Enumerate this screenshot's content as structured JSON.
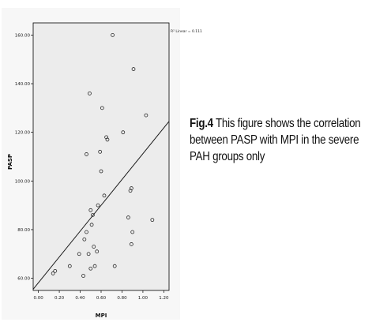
{
  "chart_data": {
    "type": "scatter",
    "xlabel": "MPI",
    "ylabel": "PASP",
    "xlim": [
      -0.05,
      1.25
    ],
    "ylim": [
      55,
      165
    ],
    "x_ticks": [
      "0.00",
      "0.20",
      "0.40",
      "0.60",
      "0.80",
      "1.00",
      "1.20"
    ],
    "y_ticks": [
      "60.00",
      "80.00",
      "100.00",
      "120.00",
      "140.00",
      "160.00"
    ],
    "x_tick_values": [
      0,
      0.2,
      0.4,
      0.6,
      0.8,
      1.0,
      1.2
    ],
    "y_tick_values": [
      60,
      80,
      100,
      120,
      140,
      160
    ],
    "r2_label": "R² Linear = 0.111",
    "grid": false,
    "point_color": "#2b2b2b",
    "line_color": "#1a1a1a",
    "plot_bg": "#ececec",
    "points": [
      {
        "x": 0.14,
        "y": 62
      },
      {
        "x": 0.16,
        "y": 63
      },
      {
        "x": 0.3,
        "y": 65
      },
      {
        "x": 0.39,
        "y": 70
      },
      {
        "x": 0.43,
        "y": 61
      },
      {
        "x": 0.44,
        "y": 76
      },
      {
        "x": 0.46,
        "y": 79
      },
      {
        "x": 0.48,
        "y": 70
      },
      {
        "x": 0.5,
        "y": 64
      },
      {
        "x": 0.5,
        "y": 88
      },
      {
        "x": 0.51,
        "y": 82
      },
      {
        "x": 0.52,
        "y": 86
      },
      {
        "x": 0.53,
        "y": 73
      },
      {
        "x": 0.54,
        "y": 65
      },
      {
        "x": 0.56,
        "y": 71
      },
      {
        "x": 0.57,
        "y": 90
      },
      {
        "x": 0.49,
        "y": 136
      },
      {
        "x": 0.46,
        "y": 111
      },
      {
        "x": 0.59,
        "y": 112
      },
      {
        "x": 0.6,
        "y": 104
      },
      {
        "x": 0.61,
        "y": 130
      },
      {
        "x": 0.63,
        "y": 94
      },
      {
        "x": 0.65,
        "y": 118
      },
      {
        "x": 0.66,
        "y": 117
      },
      {
        "x": 0.71,
        "y": 160
      },
      {
        "x": 0.73,
        "y": 65
      },
      {
        "x": 0.81,
        "y": 120
      },
      {
        "x": 0.86,
        "y": 85
      },
      {
        "x": 0.88,
        "y": 96
      },
      {
        "x": 0.89,
        "y": 97
      },
      {
        "x": 0.89,
        "y": 74
      },
      {
        "x": 0.9,
        "y": 79
      },
      {
        "x": 0.91,
        "y": 146
      },
      {
        "x": 1.03,
        "y": 127
      },
      {
        "x": 1.09,
        "y": 84
      }
    ],
    "fit_line": {
      "x": [
        -0.05,
        1.25
      ],
      "y": [
        55.5,
        124.5
      ]
    }
  },
  "caption": {
    "fig_label": "Fig.4",
    "line1": " This figure shows the correlation",
    "line2": "between PASP with MPI in the severe",
    "line3": "PAH groups only"
  }
}
